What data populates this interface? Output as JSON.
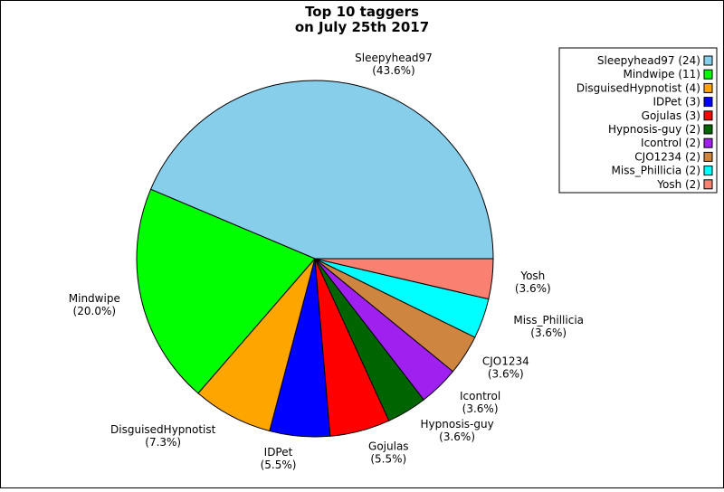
{
  "chart_data": {
    "type": "pie",
    "title": [
      "Top 10 taggers",
      "on July 25th 2017"
    ],
    "slices": [
      {
        "label": "Sleepyhead97",
        "value": 24,
        "percent": "(43.6%)",
        "legend": "Sleepyhead97 (24)",
        "color": "#87ceeb"
      },
      {
        "label": "Mindwipe",
        "value": 11,
        "percent": "(20.0%)",
        "legend": "Mindwipe (11)",
        "color": "#00ff00"
      },
      {
        "label": "DisguisedHypnotist",
        "value": 4,
        "percent": "(7.3%)",
        "legend": "DisguisedHypnotist (4)",
        "color": "#ffa500"
      },
      {
        "label": "IDPet",
        "value": 3,
        "percent": "(5.5%)",
        "legend": "IDPet (3)",
        "color": "#0000ff"
      },
      {
        "label": "Gojulas",
        "value": 3,
        "percent": "(5.5%)",
        "legend": "Gojulas (3)",
        "color": "#ff0000"
      },
      {
        "label": "Hypnosis-guy",
        "value": 2,
        "percent": "(3.6%)",
        "legend": "Hypnosis-guy (2)",
        "color": "#006400"
      },
      {
        "label": "Icontrol",
        "value": 2,
        "percent": "(3.6%)",
        "legend": "Icontrol (2)",
        "color": "#a020f0"
      },
      {
        "label": "CJO1234",
        "value": 2,
        "percent": "(3.6%)",
        "legend": "CJO1234 (2)",
        "color": "#cd853f"
      },
      {
        "label": "Miss_Phillicia",
        "value": 2,
        "percent": "(3.6%)",
        "legend": "Miss_Phillicia (2)",
        "color": "#00ffff"
      },
      {
        "label": "Yosh",
        "value": 2,
        "percent": "(3.6%)",
        "legend": "Yosh (2)",
        "color": "#fa8072"
      }
    ],
    "legend_position": "top-right",
    "direction": "counterclockwise"
  }
}
